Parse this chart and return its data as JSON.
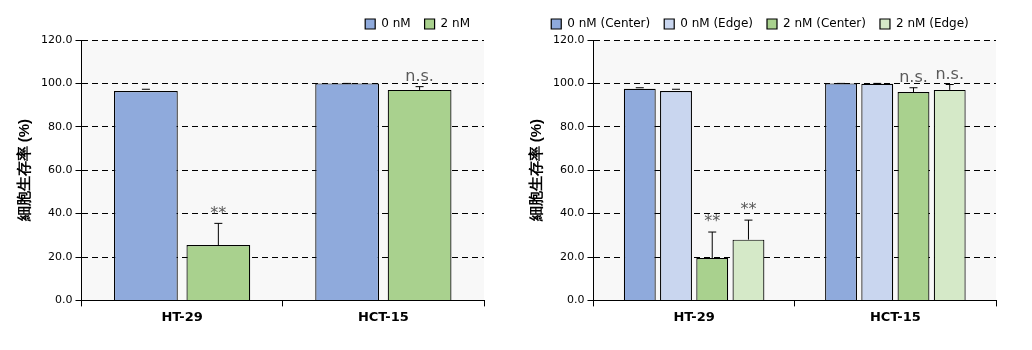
{
  "chart_data": [
    {
      "type": "bar",
      "ylabel": "細胞生存率 (%)",
      "categories": [
        "HT-29",
        "HCT-15"
      ],
      "series": [
        {
          "name": "0 nM",
          "color": "#8faadc",
          "values": [
            96.5,
            100
          ],
          "errors": [
            [
              96.5,
              97.3
            ],
            [
              100,
              100
            ]
          ]
        },
        {
          "name": "2 nM",
          "color": "#a9d18e",
          "values": [
            25.5,
            97
          ],
          "errors": [
            [
              25.5,
              35.5
            ],
            [
              97,
              98.5
            ]
          ]
        }
      ],
      "ylim": [
        0,
        120
      ],
      "yticks": [
        {
          "value": 0,
          "label": "0.0"
        },
        {
          "value": 20,
          "label": "20.0"
        },
        {
          "value": 40,
          "label": "40.0"
        },
        {
          "value": 60,
          "label": "60.0"
        },
        {
          "value": 80,
          "label": "80.0"
        },
        {
          "value": 100,
          "label": "100.0"
        },
        {
          "value": 120,
          "label": "120.0"
        }
      ],
      "annotations": [
        "**",
        "n.s."
      ],
      "grid": "y",
      "legend": "top right"
    },
    {
      "type": "bar",
      "ylabel": "細胞生存率 (%)",
      "categories": [
        "HT-29",
        "HCT-15"
      ],
      "series": [
        {
          "name": "0 nM (Center)",
          "color": "#8faadc",
          "values": [
            97.5,
            100
          ],
          "errors": [
            [
              97.5,
              98
            ],
            [
              100,
              100
            ]
          ]
        },
        {
          "name": "0 nM (Edge)",
          "color": "#c9d6ef",
          "values": [
            96.5,
            99.8
          ],
          "errors": [
            [
              96.5,
              97.3
            ],
            [
              99.8,
              100
            ]
          ]
        },
        {
          "name": "2 nM (Center)",
          "color": "#a9d18e",
          "values": [
            19.5,
            96
          ],
          "errors": [
            [
              19.5,
              31.5
            ],
            [
              96,
              98
            ]
          ]
        },
        {
          "name": "2 nM (Edge)",
          "color": "#d5e9c8",
          "values": [
            28,
            97
          ],
          "errors": [
            [
              28,
              37
            ],
            [
              97,
              99.5
            ]
          ]
        }
      ],
      "ylim": [
        0,
        120
      ],
      "yticks": [
        {
          "value": 0,
          "label": "0.0"
        },
        {
          "value": 20,
          "label": "20.0"
        },
        {
          "value": 40,
          "label": "40.0"
        },
        {
          "value": 60,
          "label": "60.0"
        },
        {
          "value": 80,
          "label": "80.0"
        },
        {
          "value": 100,
          "label": "100.0"
        },
        {
          "value": 120,
          "label": "120.0"
        }
      ],
      "annotations": [
        {
          "text": "**",
          "x": "HT-29",
          "y": 31.5
        },
        {
          "text": "**",
          "x": "HT-29",
          "y": 37
        },
        {
          "text": "n.s.",
          "x": "HCT-15",
          "y": 98
        },
        {
          "text": "n.s.",
          "x": "HCT-15",
          "y": 99.5
        }
      ],
      "grid": "y",
      "legend": "top"
    }
  ]
}
